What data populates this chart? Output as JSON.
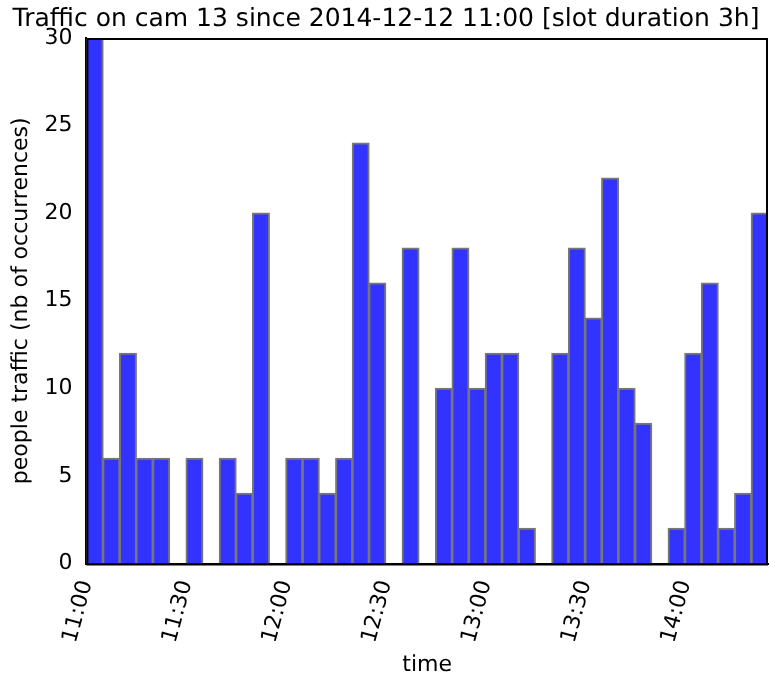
{
  "chart_data": {
    "type": "histogram",
    "title": "Traffic on cam 13 since 2014-12-12 11:00 [slot duration 3h]",
    "xlabel": "time",
    "ylabel": "people traffic (nb of occurrences)",
    "bins": [
      11,
      11.0833,
      11.1667,
      11.25,
      11.3333,
      11.4167,
      11.5,
      11.5833,
      11.6667,
      11.75,
      11.8333,
      11.9167,
      12,
      12.0833,
      12.1667,
      12.25,
      12.3333,
      12.4167,
      12.5,
      12.5833,
      12.6667,
      12.75,
      12.8333,
      12.9167,
      13,
      13.0833,
      13.1667,
      13.25,
      13.3333,
      13.4167,
      13.5,
      13.5833,
      13.6667,
      13.75,
      13.8333,
      13.9167,
      14,
      14.0833,
      14.1667,
      14.25,
      14.3333,
      14.4167
    ],
    "values": [
      30,
      6,
      12,
      6,
      6,
      0,
      6,
      0,
      6,
      4,
      20,
      0,
      6,
      6,
      4,
      6,
      24,
      16,
      0,
      18,
      0,
      10,
      18,
      10,
      12,
      12,
      2,
      0,
      12,
      18,
      14,
      22,
      10,
      8,
      0,
      2,
      12,
      16,
      2,
      4,
      20
    ],
    "color": "#3333ff",
    "xlim": [
      11,
      14.4167
    ],
    "xticks": [
      {
        "value": 11,
        "label": "11:00"
      },
      {
        "value": 11.5,
        "label": "11:30"
      },
      {
        "value": 12,
        "label": "12:00"
      },
      {
        "value": 12.5,
        "label": "12:30"
      },
      {
        "value": 13,
        "label": "13:00"
      },
      {
        "value": 13.5,
        "label": "13:30"
      },
      {
        "value": 14,
        "label": "14:00"
      }
    ],
    "ylim": [
      0,
      30
    ],
    "yticks": [
      0,
      5,
      10,
      15,
      20,
      25,
      30
    ],
    "grid": false,
    "legend": false
  }
}
